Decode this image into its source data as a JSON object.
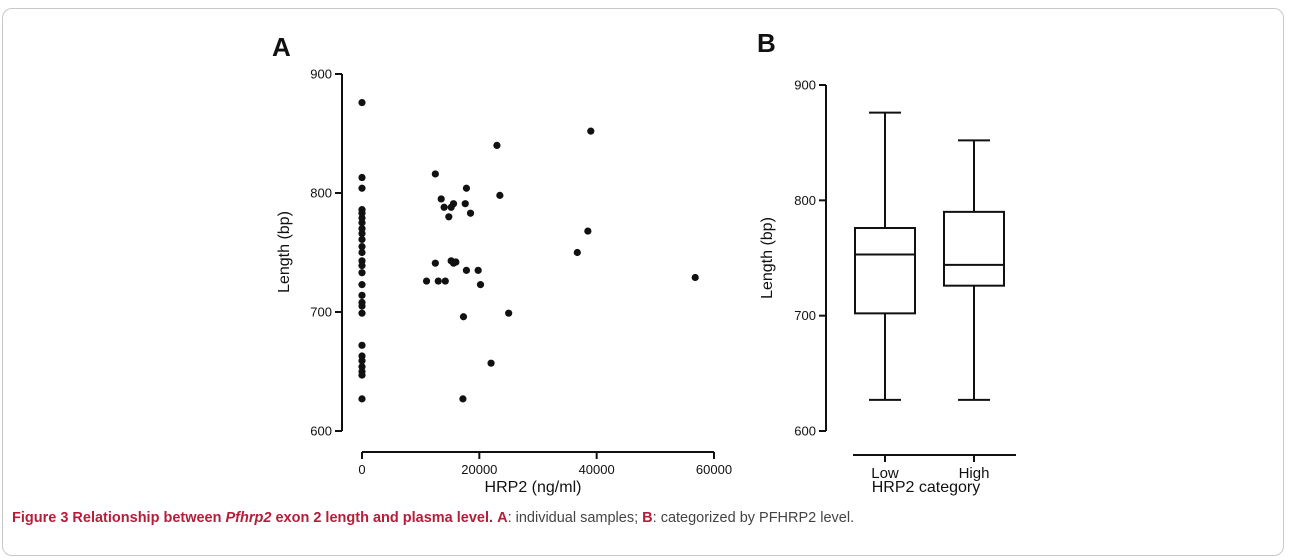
{
  "figure": {
    "caption_title_prefix": "Figure 3 Relationship between ",
    "caption_title_italic": "Pfhrp2",
    "caption_title_suffix": " exon 2 length and plasma level.",
    "caption_a_key": "A",
    "caption_a_text": ": individual samples; ",
    "caption_b_key": "B",
    "caption_b_text": ": categorized by PFHRP2 level."
  },
  "chart_data": [
    {
      "type": "scatter",
      "panel_label": "A",
      "xlabel": "HRP2 (ng/ml)",
      "ylabel": "Length (bp)",
      "xlim": [
        0,
        60000
      ],
      "ylim": [
        600,
        900
      ],
      "xticks": [
        0,
        20000,
        40000,
        60000
      ],
      "yticks": [
        600,
        700,
        800,
        900
      ],
      "grid": false,
      "points": [
        {
          "x": 0,
          "y": 876
        },
        {
          "x": 0,
          "y": 813
        },
        {
          "x": 0,
          "y": 804
        },
        {
          "x": 0,
          "y": 786
        },
        {
          "x": 0,
          "y": 783
        },
        {
          "x": 0,
          "y": 779
        },
        {
          "x": 0,
          "y": 775
        },
        {
          "x": 0,
          "y": 770
        },
        {
          "x": 0,
          "y": 766
        },
        {
          "x": 0,
          "y": 761
        },
        {
          "x": 0,
          "y": 755
        },
        {
          "x": 0,
          "y": 750
        },
        {
          "x": 0,
          "y": 743
        },
        {
          "x": 0,
          "y": 739
        },
        {
          "x": 0,
          "y": 733
        },
        {
          "x": 0,
          "y": 723
        },
        {
          "x": 0,
          "y": 714
        },
        {
          "x": 0,
          "y": 708
        },
        {
          "x": 0,
          "y": 705
        },
        {
          "x": 0,
          "y": 699
        },
        {
          "x": 0,
          "y": 672
        },
        {
          "x": 0,
          "y": 663
        },
        {
          "x": 0,
          "y": 659
        },
        {
          "x": 0,
          "y": 654
        },
        {
          "x": 0,
          "y": 650
        },
        {
          "x": 0,
          "y": 647
        },
        {
          "x": 0,
          "y": 627
        },
        {
          "x": 11000,
          "y": 726
        },
        {
          "x": 12500,
          "y": 816
        },
        {
          "x": 12500,
          "y": 741
        },
        {
          "x": 13000,
          "y": 726
        },
        {
          "x": 13500,
          "y": 795
        },
        {
          "x": 14000,
          "y": 788
        },
        {
          "x": 14200,
          "y": 726
        },
        {
          "x": 14800,
          "y": 780
        },
        {
          "x": 15200,
          "y": 788
        },
        {
          "x": 15200,
          "y": 743
        },
        {
          "x": 15600,
          "y": 791
        },
        {
          "x": 15600,
          "y": 741
        },
        {
          "x": 16000,
          "y": 742
        },
        {
          "x": 17200,
          "y": 627
        },
        {
          "x": 17300,
          "y": 696
        },
        {
          "x": 17600,
          "y": 791
        },
        {
          "x": 17800,
          "y": 804
        },
        {
          "x": 17800,
          "y": 735
        },
        {
          "x": 18500,
          "y": 783
        },
        {
          "x": 19800,
          "y": 735
        },
        {
          "x": 20200,
          "y": 723
        },
        {
          "x": 22000,
          "y": 657
        },
        {
          "x": 23000,
          "y": 840
        },
        {
          "x": 23500,
          "y": 798
        },
        {
          "x": 25000,
          "y": 699
        },
        {
          "x": 36700,
          "y": 750
        },
        {
          "x": 38500,
          "y": 768
        },
        {
          "x": 39000,
          "y": 852
        },
        {
          "x": 56800,
          "y": 729
        }
      ]
    },
    {
      "type": "box",
      "panel_label": "B",
      "xlabel": "HRP2 category",
      "ylabel": "Length (bp)",
      "ylim": [
        600,
        900
      ],
      "yticks": [
        600,
        700,
        800,
        900
      ],
      "categories": [
        "Low",
        "High"
      ],
      "boxes": [
        {
          "category": "Low",
          "min": 627,
          "q1": 702,
          "median": 753,
          "q3": 776,
          "max": 876
        },
        {
          "category": "High",
          "min": 627,
          "q1": 726,
          "median": 744,
          "q3": 790,
          "max": 852
        }
      ],
      "grid": false
    }
  ]
}
